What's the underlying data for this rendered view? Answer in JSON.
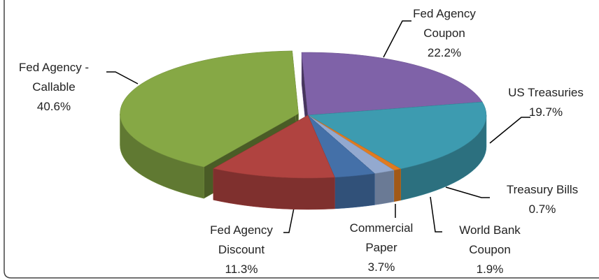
{
  "chart_data": {
    "type": "pie",
    "categories": [
      "Fed Agency Coupon",
      "US Treasuries",
      "Treasury Bills",
      "World Bank Coupon",
      "Commercial Paper",
      "Fed Agency Discount",
      "Fed Agency - Callable"
    ],
    "values": [
      22.2,
      19.7,
      0.7,
      1.9,
      3.7,
      11.3,
      40.6
    ],
    "value_labels": [
      "22.2%",
      "19.7%",
      "0.7%",
      "1.9%",
      "3.7%",
      "11.3%",
      "40.6%"
    ],
    "colors": [
      "#7f62a8",
      "#3d9bb0",
      "#e07b20",
      "#93a9cf",
      "#4470a8",
      "#b04340",
      "#86a845"
    ]
  }
}
